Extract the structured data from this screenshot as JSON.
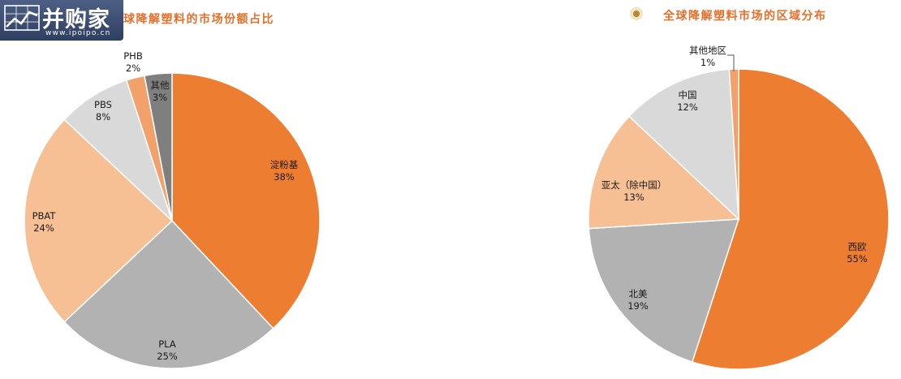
{
  "logo": {
    "name": "并购家",
    "url": "www.ipoipo.cn"
  },
  "chart_data": [
    {
      "type": "pie",
      "title": "球降解塑料的市场份额占比",
      "slices": [
        {
          "label": "淀粉基",
          "value": 38,
          "percent": "38%",
          "color": "#ed7d31"
        },
        {
          "label": "PLA",
          "value": 25,
          "percent": "25%",
          "color": "#b2b2b2"
        },
        {
          "label": "PBAT",
          "value": 24,
          "percent": "24%",
          "color": "#f7bf94"
        },
        {
          "label": "PBS",
          "value": 8,
          "percent": "8%",
          "color": "#d9d9d9"
        },
        {
          "label": "PHB",
          "value": 2,
          "percent": "2%",
          "color": "#f3a16b"
        },
        {
          "label": "其他",
          "value": 3,
          "percent": "3%",
          "color": "#7f7f7f"
        }
      ]
    },
    {
      "type": "pie",
      "title": "全球降解塑料市场的区域分布",
      "slices": [
        {
          "label": "西欧",
          "value": 55,
          "percent": "55%",
          "color": "#ed7d31"
        },
        {
          "label": "北美",
          "value": 19,
          "percent": "19%",
          "color": "#b2b2b2"
        },
        {
          "label": "亚太（除中国）",
          "value": 13,
          "percent": "13%",
          "color": "#f7bf94"
        },
        {
          "label": "中国",
          "value": 12,
          "percent": "12%",
          "color": "#d9d9d9"
        },
        {
          "label": "其他地区",
          "value": 1,
          "percent": "1%",
          "color": "#f3a16b"
        }
      ]
    }
  ]
}
